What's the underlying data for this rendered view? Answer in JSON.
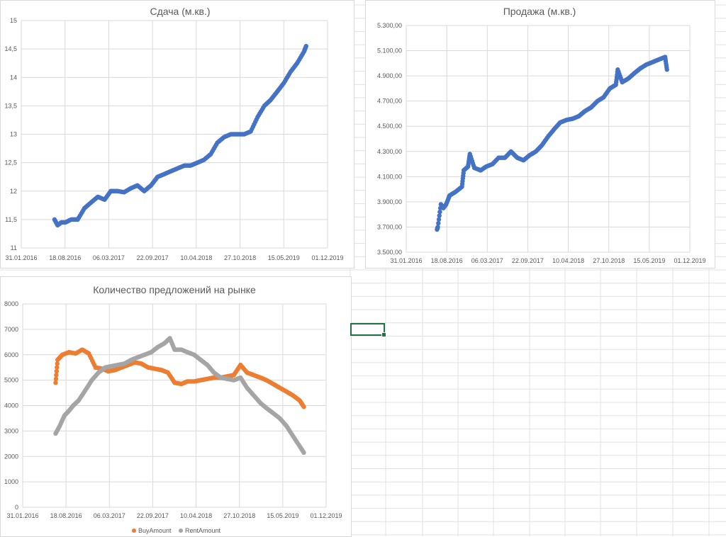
{
  "colors": {
    "rent_series": "#4472C4",
    "buy_series": "#ED7D31",
    "rent_amount_series": "#A5A5A5",
    "gridline": "#d9d9d9",
    "axis_text": "#595959",
    "selection": "#217346"
  },
  "chart_data": [
    {
      "id": "rent",
      "type": "scatter",
      "title": "Сдача (м.кв.)",
      "xlabel": "",
      "ylabel": "",
      "x_ticks": [
        "31.01.2016",
        "18.08.2016",
        "06.03.2017",
        "22.09.2017",
        "10.04.2018",
        "27.10.2018",
        "15.05.2019",
        "01.12.2019"
      ],
      "y_ticks": [
        "11",
        "11,5",
        "12",
        "12,5",
        "13",
        "13,5",
        "14",
        "14,5",
        "15"
      ],
      "xlim": [
        "2016-01-31",
        "2019-12-01"
      ],
      "ylim": [
        11,
        15
      ],
      "grid": true,
      "series": [
        {
          "color": "#4472C4",
          "points": [
            [
              "2016-07-01",
              11.5
            ],
            [
              "2016-07-15",
              11.4
            ],
            [
              "2016-08-01",
              11.45
            ],
            [
              "2016-08-20",
              11.45
            ],
            [
              "2016-09-15",
              11.5
            ],
            [
              "2016-10-15",
              11.5
            ],
            [
              "2016-11-15",
              11.7
            ],
            [
              "2016-12-15",
              11.8
            ],
            [
              "2017-01-15",
              11.9
            ],
            [
              "2017-02-15",
              11.85
            ],
            [
              "2017-03-15",
              12.0
            ],
            [
              "2017-04-15",
              12.0
            ],
            [
              "2017-05-15",
              11.98
            ],
            [
              "2017-06-15",
              12.05
            ],
            [
              "2017-07-15",
              12.1
            ],
            [
              "2017-08-15",
              12.0
            ],
            [
              "2017-09-15",
              12.1
            ],
            [
              "2017-10-15",
              12.25
            ],
            [
              "2017-11-15",
              12.3
            ],
            [
              "2017-12-15",
              12.35
            ],
            [
              "2018-01-15",
              12.4
            ],
            [
              "2018-02-15",
              12.45
            ],
            [
              "2018-03-15",
              12.45
            ],
            [
              "2018-04-15",
              12.5
            ],
            [
              "2018-05-15",
              12.55
            ],
            [
              "2018-06-15",
              12.65
            ],
            [
              "2018-07-15",
              12.85
            ],
            [
              "2018-08-15",
              12.95
            ],
            [
              "2018-09-15",
              13.0
            ],
            [
              "2018-10-15",
              13.0
            ],
            [
              "2018-11-15",
              13.0
            ],
            [
              "2018-12-15",
              13.05
            ],
            [
              "2019-01-15",
              13.3
            ],
            [
              "2019-02-15",
              13.5
            ],
            [
              "2019-03-15",
              13.6
            ],
            [
              "2019-04-15",
              13.75
            ],
            [
              "2019-05-15",
              13.9
            ],
            [
              "2019-06-15",
              14.1
            ],
            [
              "2019-07-15",
              14.25
            ],
            [
              "2019-08-15",
              14.45
            ],
            [
              "2019-08-25",
              14.55
            ]
          ]
        }
      ]
    },
    {
      "id": "sale",
      "type": "scatter",
      "title": "Продажа (м.кв.)",
      "xlabel": "",
      "ylabel": "",
      "x_ticks": [
        "31.01.2016",
        "18.08.2016",
        "06.03.2017",
        "22.09.2017",
        "10.04.2018",
        "27.10.2018",
        "15.05.2019",
        "01.12.2019"
      ],
      "y_ticks": [
        "3.500,00",
        "3.700,00",
        "3.900,00",
        "4.100,00",
        "4.300,00",
        "4.500,00",
        "4.700,00",
        "4.900,00",
        "5.100,00",
        "5.300,00"
      ],
      "xlim": [
        "2016-01-31",
        "2019-12-01"
      ],
      "ylim": [
        3500,
        5300
      ],
      "grid": true,
      "series": [
        {
          "color": "#4472C4",
          "points": [
            [
              "2016-07-01",
              3680
            ],
            [
              "2016-07-05",
              3700
            ],
            [
              "2016-07-20",
              3880
            ],
            [
              "2016-08-01",
              3850
            ],
            [
              "2016-08-15",
              3880
            ],
            [
              "2016-09-01",
              3950
            ],
            [
              "2016-10-01",
              3980
            ],
            [
              "2016-11-01",
              4020
            ],
            [
              "2016-11-10",
              4150
            ],
            [
              "2016-12-01",
              4180
            ],
            [
              "2016-12-10",
              4280
            ],
            [
              "2017-01-01",
              4170
            ],
            [
              "2017-02-01",
              4150
            ],
            [
              "2017-03-01",
              4180
            ],
            [
              "2017-04-01",
              4200
            ],
            [
              "2017-05-01",
              4250
            ],
            [
              "2017-06-01",
              4250
            ],
            [
              "2017-07-01",
              4300
            ],
            [
              "2017-08-01",
              4250
            ],
            [
              "2017-09-01",
              4230
            ],
            [
              "2017-10-01",
              4270
            ],
            [
              "2017-11-01",
              4300
            ],
            [
              "2017-12-01",
              4350
            ],
            [
              "2018-01-01",
              4420
            ],
            [
              "2018-02-01",
              4480
            ],
            [
              "2018-03-01",
              4530
            ],
            [
              "2018-04-01",
              4550
            ],
            [
              "2018-05-01",
              4560
            ],
            [
              "2018-06-01",
              4580
            ],
            [
              "2018-07-01",
              4620
            ],
            [
              "2018-08-01",
              4650
            ],
            [
              "2018-09-01",
              4700
            ],
            [
              "2018-10-01",
              4730
            ],
            [
              "2018-11-01",
              4800
            ],
            [
              "2018-12-01",
              4830
            ],
            [
              "2018-12-10",
              4950
            ],
            [
              "2019-01-01",
              4850
            ],
            [
              "2019-02-01",
              4880
            ],
            [
              "2019-03-01",
              4920
            ],
            [
              "2019-04-01",
              4960
            ],
            [
              "2019-05-01",
              4990
            ],
            [
              "2019-06-01",
              5010
            ],
            [
              "2019-07-01",
              5030
            ],
            [
              "2019-08-01",
              5050
            ],
            [
              "2019-08-10",
              4950
            ]
          ]
        }
      ]
    },
    {
      "id": "offers",
      "type": "scatter",
      "title": "Количество предложений на рынке",
      "xlabel": "",
      "ylabel": "",
      "x_ticks": [
        "31.01.2016",
        "18.08.2016",
        "06.03.2017",
        "22.09.2017",
        "10.04.2018",
        "27.10.2018",
        "15.05.2019",
        "01.12.2019"
      ],
      "y_ticks": [
        "0",
        "1000",
        "2000",
        "3000",
        "4000",
        "5000",
        "6000",
        "7000",
        "8000"
      ],
      "xlim": [
        "2016-01-31",
        "2019-12-01"
      ],
      "ylim": [
        0,
        8000
      ],
      "grid": true,
      "legend_position": "bottom",
      "series": [
        {
          "name": "BuyAmount",
          "color": "#ED7D31",
          "points": [
            [
              "2016-07-01",
              4900
            ],
            [
              "2016-07-10",
              5800
            ],
            [
              "2016-08-01",
              6000
            ],
            [
              "2016-09-01",
              6100
            ],
            [
              "2016-10-01",
              6050
            ],
            [
              "2016-11-01",
              6200
            ],
            [
              "2016-12-01",
              6050
            ],
            [
              "2017-01-01",
              5500
            ],
            [
              "2017-02-01",
              5450
            ],
            [
              "2017-03-01",
              5350
            ],
            [
              "2017-04-01",
              5400
            ],
            [
              "2017-05-01",
              5500
            ],
            [
              "2017-06-01",
              5600
            ],
            [
              "2017-07-01",
              5700
            ],
            [
              "2017-08-01",
              5650
            ],
            [
              "2017-09-01",
              5500
            ],
            [
              "2017-10-01",
              5450
            ],
            [
              "2017-11-01",
              5400
            ],
            [
              "2017-12-01",
              5300
            ],
            [
              "2018-01-01",
              4900
            ],
            [
              "2018-02-01",
              4850
            ],
            [
              "2018-03-01",
              4950
            ],
            [
              "2018-04-01",
              4950
            ],
            [
              "2018-05-01",
              5000
            ],
            [
              "2018-06-01",
              5050
            ],
            [
              "2018-07-01",
              5100
            ],
            [
              "2018-08-01",
              5100
            ],
            [
              "2018-09-01",
              5150
            ],
            [
              "2018-10-01",
              5200
            ],
            [
              "2018-11-01",
              5600
            ],
            [
              "2018-12-01",
              5300
            ],
            [
              "2019-01-01",
              5200
            ],
            [
              "2019-02-01",
              5100
            ],
            [
              "2019-03-01",
              5000
            ],
            [
              "2019-04-01",
              4850
            ],
            [
              "2019-05-01",
              4700
            ],
            [
              "2019-06-01",
              4550
            ],
            [
              "2019-07-01",
              4400
            ],
            [
              "2019-08-01",
              4200
            ],
            [
              "2019-08-20",
              3950
            ]
          ]
        },
        {
          "name": "RentAmount",
          "color": "#A5A5A5",
          "points": [
            [
              "2016-07-01",
              2900
            ],
            [
              "2016-07-20",
              3200
            ],
            [
              "2016-08-10",
              3600
            ],
            [
              "2016-09-01",
              3800
            ],
            [
              "2016-09-20",
              4000
            ],
            [
              "2016-10-15",
              4200
            ],
            [
              "2016-11-15",
              4600
            ],
            [
              "2016-12-15",
              5000
            ],
            [
              "2017-01-15",
              5300
            ],
            [
              "2017-02-15",
              5500
            ],
            [
              "2017-03-15",
              5550
            ],
            [
              "2017-04-15",
              5600
            ],
            [
              "2017-05-15",
              5650
            ],
            [
              "2017-06-15",
              5800
            ],
            [
              "2017-07-15",
              5900
            ],
            [
              "2017-08-15",
              6000
            ],
            [
              "2017-09-15",
              6100
            ],
            [
              "2017-10-15",
              6300
            ],
            [
              "2017-11-15",
              6450
            ],
            [
              "2017-12-10",
              6650
            ],
            [
              "2018-01-01",
              6200
            ],
            [
              "2018-02-01",
              6200
            ],
            [
              "2018-03-01",
              6100
            ],
            [
              "2018-04-01",
              6000
            ],
            [
              "2018-05-01",
              5800
            ],
            [
              "2018-06-01",
              5600
            ],
            [
              "2018-07-01",
              5300
            ],
            [
              "2018-08-01",
              5100
            ],
            [
              "2018-09-01",
              5050
            ],
            [
              "2018-10-01",
              5000
            ],
            [
              "2018-11-01",
              5100
            ],
            [
              "2018-12-01",
              4700
            ],
            [
              "2019-01-01",
              4400
            ],
            [
              "2019-02-01",
              4100
            ],
            [
              "2019-03-01",
              3900
            ],
            [
              "2019-04-01",
              3700
            ],
            [
              "2019-05-01",
              3500
            ],
            [
              "2019-06-01",
              3200
            ],
            [
              "2019-07-01",
              2800
            ],
            [
              "2019-08-01",
              2400
            ],
            [
              "2019-08-20",
              2150
            ]
          ]
        }
      ]
    }
  ]
}
